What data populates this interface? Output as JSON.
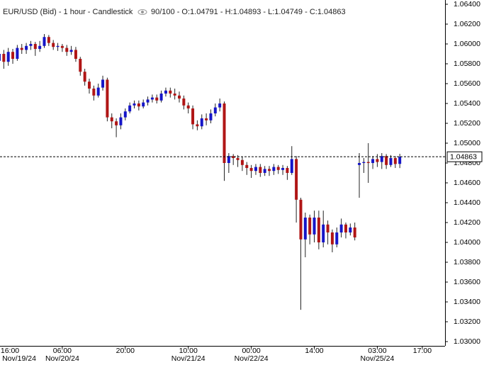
{
  "chart_data": {
    "type": "candlestick",
    "header": "EUR/USD (Bid) - 1 hour - Candlestick",
    "ohlc_text": "90/100 - O:1.04791 - H:1.04893 - L:1.04749 - C:1.04863",
    "up_color": "#1515c8",
    "down_color": "#b01515",
    "last_price": 1.04863,
    "xlim": [
      0.16,
      99.05
    ],
    "xticks": [
      {
        "value": 0,
        "label": "16:00",
        "date": "Nov/19/24"
      },
      {
        "value": 14,
        "label": "06:00",
        "date": "Nov/20/24"
      },
      {
        "value": 28,
        "label": "20:00"
      },
      {
        "value": 42,
        "label": "10:00",
        "date": "Nov/21/24"
      },
      {
        "value": 56,
        "label": "00:00",
        "date": "Nov/22/24"
      },
      {
        "value": 70,
        "label": "14:00"
      },
      {
        "value": 84,
        "label": "03:00",
        "date": "Nov/25/24"
      },
      {
        "value": 94,
        "label": "17:00"
      }
    ],
    "ylim": [
      1.02957,
      1.06443
    ],
    "yticks": [
      {
        "value": 1.064,
        "label": "1.06400"
      },
      {
        "value": 1.062,
        "label": "1.06200"
      },
      {
        "value": 1.06,
        "label": "1.06000"
      },
      {
        "value": 1.058,
        "label": "1.05800"
      },
      {
        "value": 1.056,
        "label": "1.05600"
      },
      {
        "value": 1.054,
        "label": "1.05400"
      },
      {
        "value": 1.052,
        "label": "1.05200"
      },
      {
        "value": 1.05,
        "label": "1.05000"
      },
      {
        "value": 1.048,
        "label": "1.04800"
      },
      {
        "value": 1.046,
        "label": "1.04600"
      },
      {
        "value": 1.044,
        "label": "1.04400"
      },
      {
        "value": 1.042,
        "label": "1.04200"
      },
      {
        "value": 1.04,
        "label": "1.04000"
      },
      {
        "value": 1.038,
        "label": "1.03800"
      },
      {
        "value": 1.036,
        "label": "1.03600"
      },
      {
        "value": 1.034,
        "label": "1.03400"
      },
      {
        "value": 1.032,
        "label": "1.03200"
      },
      {
        "value": 1.03,
        "label": "1.03000"
      }
    ],
    "open": [
      1.0583,
      1.059,
      1.0582,
      1.0592,
      1.0585,
      1.0596,
      1.0594,
      1.0598,
      1.06,
      1.0595,
      1.0598,
      1.0607,
      1.0601,
      1.0597,
      1.0598,
      1.0596,
      1.0592,
      1.0594,
      1.0585,
      1.0572,
      1.0562,
      1.0555,
      1.0548,
      1.0556,
      1.0564,
      1.0526,
      1.0522,
      1.0518,
      1.0526,
      1.0532,
      1.0538,
      1.054,
      1.0537,
      1.0541,
      1.0544,
      1.0546,
      1.0543,
      1.055,
      1.0553,
      1.055,
      1.0548,
      1.0545,
      1.0538,
      1.0535,
      1.0519,
      1.0517,
      1.0525,
      1.0523,
      1.053,
      1.0536,
      1.054,
      1.048,
      1.0487,
      1.0485,
      1.0483,
      1.0478,
      1.0475,
      1.0472,
      1.0476,
      1.047,
      1.0474,
      1.0472,
      1.0476,
      1.0473,
      1.0475,
      1.047,
      1.0484,
      1.0443,
      1.0403,
      1.0425,
      1.0408,
      1.0425,
      1.04,
      1.0418,
      1.041,
      1.0398,
      1.041,
      1.0418,
      1.041,
      1.0415,
      1.0478,
      1.048,
      1.0481,
      1.048,
      1.0484,
      1.0481,
      1.0487,
      1.0478,
      1.0485,
      1.04791
    ],
    "high": [
      1.0599,
      1.0594,
      1.0596,
      1.0595,
      1.0599,
      1.06,
      1.0601,
      1.0603,
      1.0602,
      1.0603,
      1.061,
      1.0609,
      1.0604,
      1.0601,
      1.06,
      1.0599,
      1.0598,
      1.0597,
      1.0587,
      1.0575,
      1.0565,
      1.0558,
      1.056,
      1.0568,
      1.0566,
      1.053,
      1.0525,
      1.053,
      1.0535,
      1.0541,
      1.0543,
      1.0543,
      1.0544,
      1.0547,
      1.0549,
      1.0549,
      1.0553,
      1.0556,
      1.0556,
      1.0555,
      1.0552,
      1.0548,
      1.0541,
      1.0538,
      1.0523,
      1.0529,
      1.053,
      1.0534,
      1.054,
      1.0545,
      1.0542,
      1.049,
      1.0489,
      1.0488,
      1.0486,
      1.0481,
      1.0478,
      1.0479,
      1.0479,
      1.0477,
      1.0477,
      1.0479,
      1.0478,
      1.0478,
      1.0477,
      1.0497,
      1.0487,
      1.0445,
      1.043,
      1.0428,
      1.0432,
      1.0432,
      1.0432,
      1.0422,
      1.0413,
      1.0415,
      1.0424,
      1.042,
      1.0419,
      1.042,
      1.049,
      1.0485,
      1.05,
      1.0487,
      1.0489,
      1.049,
      1.0489,
      1.0488,
      1.0487,
      1.04893
    ],
    "low": [
      1.0564,
      1.0575,
      1.0578,
      1.058,
      1.0583,
      1.059,
      1.059,
      1.0594,
      1.0588,
      1.0592,
      1.0596,
      1.0598,
      1.0594,
      1.0593,
      1.0592,
      1.0588,
      1.0589,
      1.0582,
      1.0568,
      1.0558,
      1.055,
      1.0543,
      1.0546,
      1.0553,
      1.0522,
      1.0515,
      1.0506,
      1.0514,
      1.0523,
      1.053,
      1.0535,
      1.0533,
      1.0535,
      1.0538,
      1.0541,
      1.054,
      1.0541,
      1.0547,
      1.0546,
      1.0544,
      1.0541,
      1.0534,
      1.053,
      1.0514,
      1.0513,
      1.0514,
      1.0518,
      1.052,
      1.0527,
      1.0532,
      1.0462,
      1.047,
      1.0478,
      1.0476,
      1.0472,
      1.0468,
      1.0465,
      1.0468,
      1.0466,
      1.0467,
      1.0467,
      1.0468,
      1.0469,
      1.0468,
      1.0463,
      1.0468,
      1.042,
      1.0332,
      1.0385,
      1.0398,
      1.04,
      1.0393,
      1.0395,
      1.0398,
      1.039,
      1.0395,
      1.0405,
      1.0404,
      1.0407,
      1.0402,
      1.0445,
      1.047,
      1.046,
      1.0474,
      1.0476,
      1.0474,
      1.0474,
      1.0476,
      1.0475,
      1.04749
    ],
    "close": [
      1.059,
      1.0582,
      1.0592,
      1.0585,
      1.0596,
      1.0594,
      1.0598,
      1.06,
      1.0595,
      1.0598,
      1.0607,
      1.0601,
      1.0597,
      1.0598,
      1.0596,
      1.0592,
      1.0594,
      1.0585,
      1.0572,
      1.0562,
      1.0555,
      1.0548,
      1.0556,
      1.0564,
      1.0526,
      1.0522,
      1.0518,
      1.0526,
      1.0532,
      1.0538,
      1.054,
      1.0537,
      1.0541,
      1.0544,
      1.0546,
      1.0543,
      1.055,
      1.0553,
      1.055,
      1.0548,
      1.0545,
      1.0538,
      1.0535,
      1.0519,
      1.0517,
      1.0525,
      1.0523,
      1.053,
      1.0536,
      1.054,
      1.048,
      1.0487,
      1.0485,
      1.0483,
      1.0478,
      1.0475,
      1.0472,
      1.0476,
      1.047,
      1.0474,
      1.0472,
      1.0476,
      1.0473,
      1.0475,
      1.047,
      1.0484,
      1.0443,
      1.0403,
      1.0425,
      1.0408,
      1.0425,
      1.04,
      1.0418,
      1.041,
      1.0398,
      1.041,
      1.0418,
      1.041,
      1.0415,
      1.0405,
      1.048,
      1.0481,
      1.048,
      1.0484,
      1.0481,
      1.0487,
      1.0478,
      1.0485,
      1.0479,
      1.04863
    ]
  }
}
